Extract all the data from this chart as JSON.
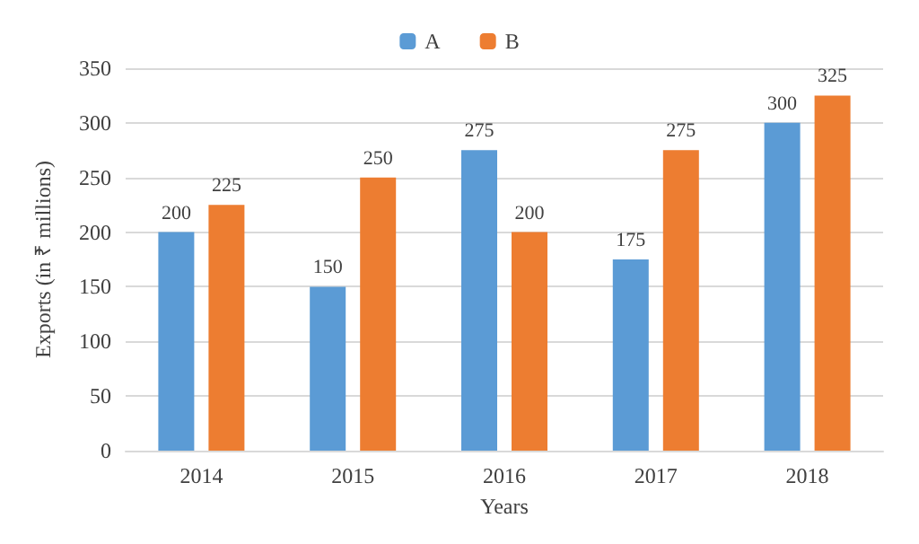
{
  "chart_data": {
    "type": "bar",
    "xlabel": "Years",
    "ylabel": "Exports (in ₹ millions)",
    "categories": [
      "2014",
      "2015",
      "2016",
      "2017",
      "2018"
    ],
    "series": [
      {
        "name": "A",
        "color": "#5b9bd5",
        "values": [
          200,
          150,
          275,
          175,
          300
        ]
      },
      {
        "name": "B",
        "color": "#ed7d31",
        "values": [
          225,
          250,
          200,
          275,
          325
        ]
      }
    ],
    "ylim": [
      0,
      350
    ],
    "yticks": [
      0,
      50,
      100,
      150,
      200,
      250,
      300,
      350
    ],
    "grid": "y",
    "legend": "top",
    "data_labels": true
  }
}
